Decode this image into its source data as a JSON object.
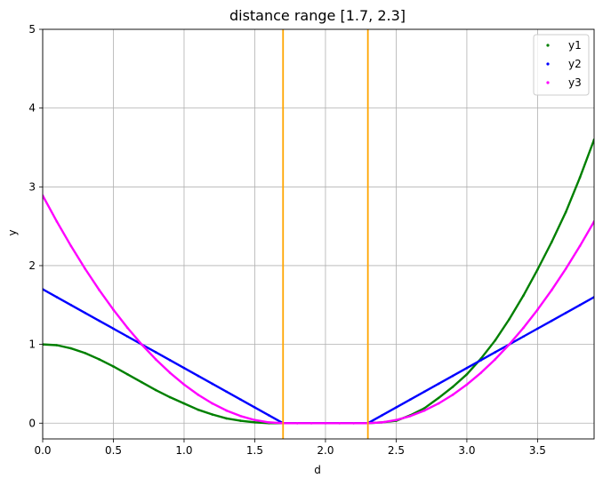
{
  "chart_data": {
    "type": "scatter",
    "title": "distance range [1.7, 2.3]",
    "xlabel": "d",
    "ylabel": "y",
    "xlim": [
      0,
      3.9
    ],
    "ylim": [
      -0.2,
      5
    ],
    "xticks": [
      "0.0",
      "0.5",
      "1.0",
      "1.5",
      "2.0",
      "2.5",
      "3.0",
      "3.5"
    ],
    "xtick_values": [
      0,
      0.5,
      1.0,
      1.5,
      2.0,
      2.5,
      3.0,
      3.5
    ],
    "yticks": [
      "0",
      "1",
      "2",
      "3",
      "4",
      "5"
    ],
    "ytick_values": [
      0,
      1,
      2,
      3,
      4,
      5
    ],
    "grid": true,
    "legend_position": "top-right",
    "range_lines": {
      "x": [
        1.7,
        2.3
      ],
      "color": "#ffa500"
    },
    "series": [
      {
        "name": "y1",
        "color": "#008000",
        "x": [
          0,
          0.1,
          0.2,
          0.3,
          0.4,
          0.5,
          0.6,
          0.7,
          0.8,
          0.9,
          1.0,
          1.1,
          1.2,
          1.3,
          1.4,
          1.5,
          1.6,
          1.7,
          1.8,
          1.9,
          2.0,
          2.1,
          2.2,
          2.3,
          2.4,
          2.5,
          2.6,
          2.7,
          2.8,
          2.9,
          3.0,
          3.1,
          3.2,
          3.3,
          3.4,
          3.5,
          3.6,
          3.7,
          3.8,
          3.9
        ],
        "y": [
          1.0,
          0.99,
          0.95,
          0.89,
          0.81,
          0.72,
          0.62,
          0.52,
          0.42,
          0.33,
          0.25,
          0.17,
          0.11,
          0.06,
          0.03,
          0.01,
          0.0,
          0.0,
          0.0,
          0.0,
          0.0,
          0.0,
          0.0,
          0.0,
          0.01,
          0.03,
          0.1,
          0.19,
          0.32,
          0.46,
          0.62,
          0.82,
          1.05,
          1.32,
          1.62,
          1.95,
          2.3,
          2.68,
          3.12,
          3.6
        ]
      },
      {
        "name": "y2",
        "color": "#0000ff",
        "x": [
          0,
          0.1,
          0.2,
          0.3,
          0.4,
          0.5,
          0.6,
          0.7,
          0.8,
          0.9,
          1.0,
          1.1,
          1.2,
          1.3,
          1.4,
          1.5,
          1.6,
          1.7,
          1.8,
          1.9,
          2.0,
          2.1,
          2.2,
          2.3,
          2.4,
          2.5,
          2.6,
          2.7,
          2.8,
          2.9,
          3.0,
          3.1,
          3.2,
          3.3,
          3.4,
          3.5,
          3.6,
          3.7,
          3.8,
          3.9
        ],
        "y": [
          1.7,
          1.6,
          1.5,
          1.4,
          1.3,
          1.2,
          1.1,
          1.0,
          0.9,
          0.8,
          0.7,
          0.6,
          0.5,
          0.4,
          0.3,
          0.2,
          0.1,
          0.0,
          0.0,
          0.0,
          0.0,
          0.0,
          0.0,
          0.0,
          0.1,
          0.2,
          0.3,
          0.4,
          0.5,
          0.6,
          0.7,
          0.8,
          0.9,
          1.0,
          1.1,
          1.2,
          1.3,
          1.4,
          1.5,
          1.6
        ]
      },
      {
        "name": "y3",
        "color": "#ff00ff",
        "x": [
          0,
          0.1,
          0.2,
          0.3,
          0.4,
          0.5,
          0.6,
          0.7,
          0.8,
          0.9,
          1.0,
          1.1,
          1.2,
          1.3,
          1.4,
          1.5,
          1.6,
          1.7,
          1.8,
          1.9,
          2.0,
          2.1,
          2.2,
          2.3,
          2.4,
          2.5,
          2.6,
          2.7,
          2.8,
          2.9,
          3.0,
          3.1,
          3.2,
          3.3,
          3.4,
          3.5,
          3.6,
          3.7,
          3.8,
          3.9
        ],
        "y": [
          2.89,
          2.56,
          2.25,
          1.96,
          1.69,
          1.44,
          1.21,
          1.0,
          0.81,
          0.64,
          0.49,
          0.36,
          0.25,
          0.16,
          0.09,
          0.04,
          0.01,
          0.0,
          0.0,
          0.0,
          0.0,
          0.0,
          0.0,
          0.0,
          0.01,
          0.04,
          0.09,
          0.16,
          0.25,
          0.36,
          0.49,
          0.64,
          0.81,
          1.0,
          1.21,
          1.44,
          1.69,
          1.96,
          2.25,
          2.56
        ]
      }
    ]
  }
}
